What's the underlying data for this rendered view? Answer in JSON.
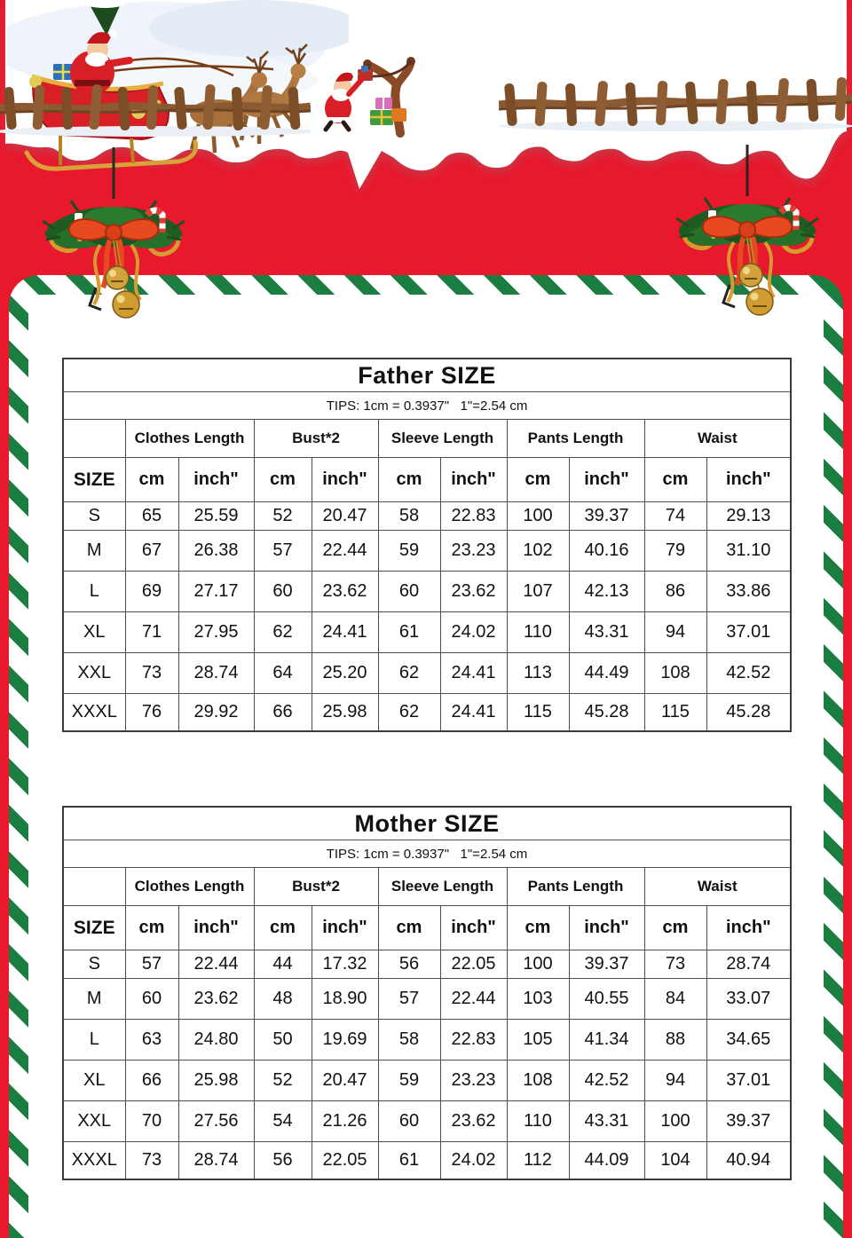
{
  "colors": {
    "background_red": "#e8182d",
    "stripe_green": "#1b7d40",
    "cm_blue": "#3f74b5",
    "inch_orange": "#dc7217"
  },
  "tables": [
    {
      "title": "Father SIZE",
      "tips": "TIPS: 1cm = 0.3937\"   1\"=2.54 cm",
      "columns": [
        "Clothes Length",
        "Bust*2",
        "Sleeve Length",
        "Pants Length",
        "Waist"
      ],
      "size_header": "SIZE",
      "cm_header": "cm",
      "inch_header": "inch\"",
      "rows": [
        {
          "size": "S",
          "cells": [
            "65",
            "25.59",
            "52",
            "20.47",
            "58",
            "22.83",
            "100",
            "39.37",
            "74",
            "29.13"
          ]
        },
        {
          "size": "M",
          "cells": [
            "67",
            "26.38",
            "57",
            "22.44",
            "59",
            "23.23",
            "102",
            "40.16",
            "79",
            "31.10"
          ]
        },
        {
          "size": "L",
          "cells": [
            "69",
            "27.17",
            "60",
            "23.62",
            "60",
            "23.62",
            "107",
            "42.13",
            "86",
            "33.86"
          ]
        },
        {
          "size": "XL",
          "cells": [
            "71",
            "27.95",
            "62",
            "24.41",
            "61",
            "24.02",
            "110",
            "43.31",
            "94",
            "37.01"
          ]
        },
        {
          "size": "XXL",
          "cells": [
            "73",
            "28.74",
            "64",
            "25.20",
            "62",
            "24.41",
            "113",
            "44.49",
            "108",
            "42.52"
          ]
        },
        {
          "size": "XXXL",
          "cells": [
            "76",
            "29.92",
            "66",
            "25.98",
            "62",
            "24.41",
            "115",
            "45.28",
            "115",
            "45.28"
          ]
        }
      ]
    },
    {
      "title": "Mother SIZE",
      "tips": "TIPS: 1cm = 0.3937\"   1\"=2.54 cm",
      "columns": [
        "Clothes Length",
        "Bust*2",
        "Sleeve Length",
        "Pants Length",
        "Waist"
      ],
      "size_header": "SIZE",
      "cm_header": "cm",
      "inch_header": "inch\"",
      "rows": [
        {
          "size": "S",
          "cells": [
            "57",
            "22.44",
            "44",
            "17.32",
            "56",
            "22.05",
            "100",
            "39.37",
            "73",
            "28.74"
          ]
        },
        {
          "size": "M",
          "cells": [
            "60",
            "23.62",
            "48",
            "18.90",
            "57",
            "22.44",
            "103",
            "40.55",
            "84",
            "33.07"
          ]
        },
        {
          "size": "L",
          "cells": [
            "63",
            "24.80",
            "50",
            "19.69",
            "58",
            "22.83",
            "105",
            "41.34",
            "88",
            "34.65"
          ]
        },
        {
          "size": "XL",
          "cells": [
            "66",
            "25.98",
            "52",
            "20.47",
            "59",
            "23.23",
            "108",
            "42.52",
            "94",
            "37.01"
          ]
        },
        {
          "size": "XXL",
          "cells": [
            "70",
            "27.56",
            "54",
            "21.26",
            "60",
            "23.62",
            "110",
            "43.31",
            "100",
            "39.37"
          ]
        },
        {
          "size": "XXXL",
          "cells": [
            "73",
            "28.74",
            "56",
            "22.05",
            "61",
            "24.02",
            "112",
            "44.09",
            "104",
            "40.94"
          ]
        }
      ]
    }
  ]
}
